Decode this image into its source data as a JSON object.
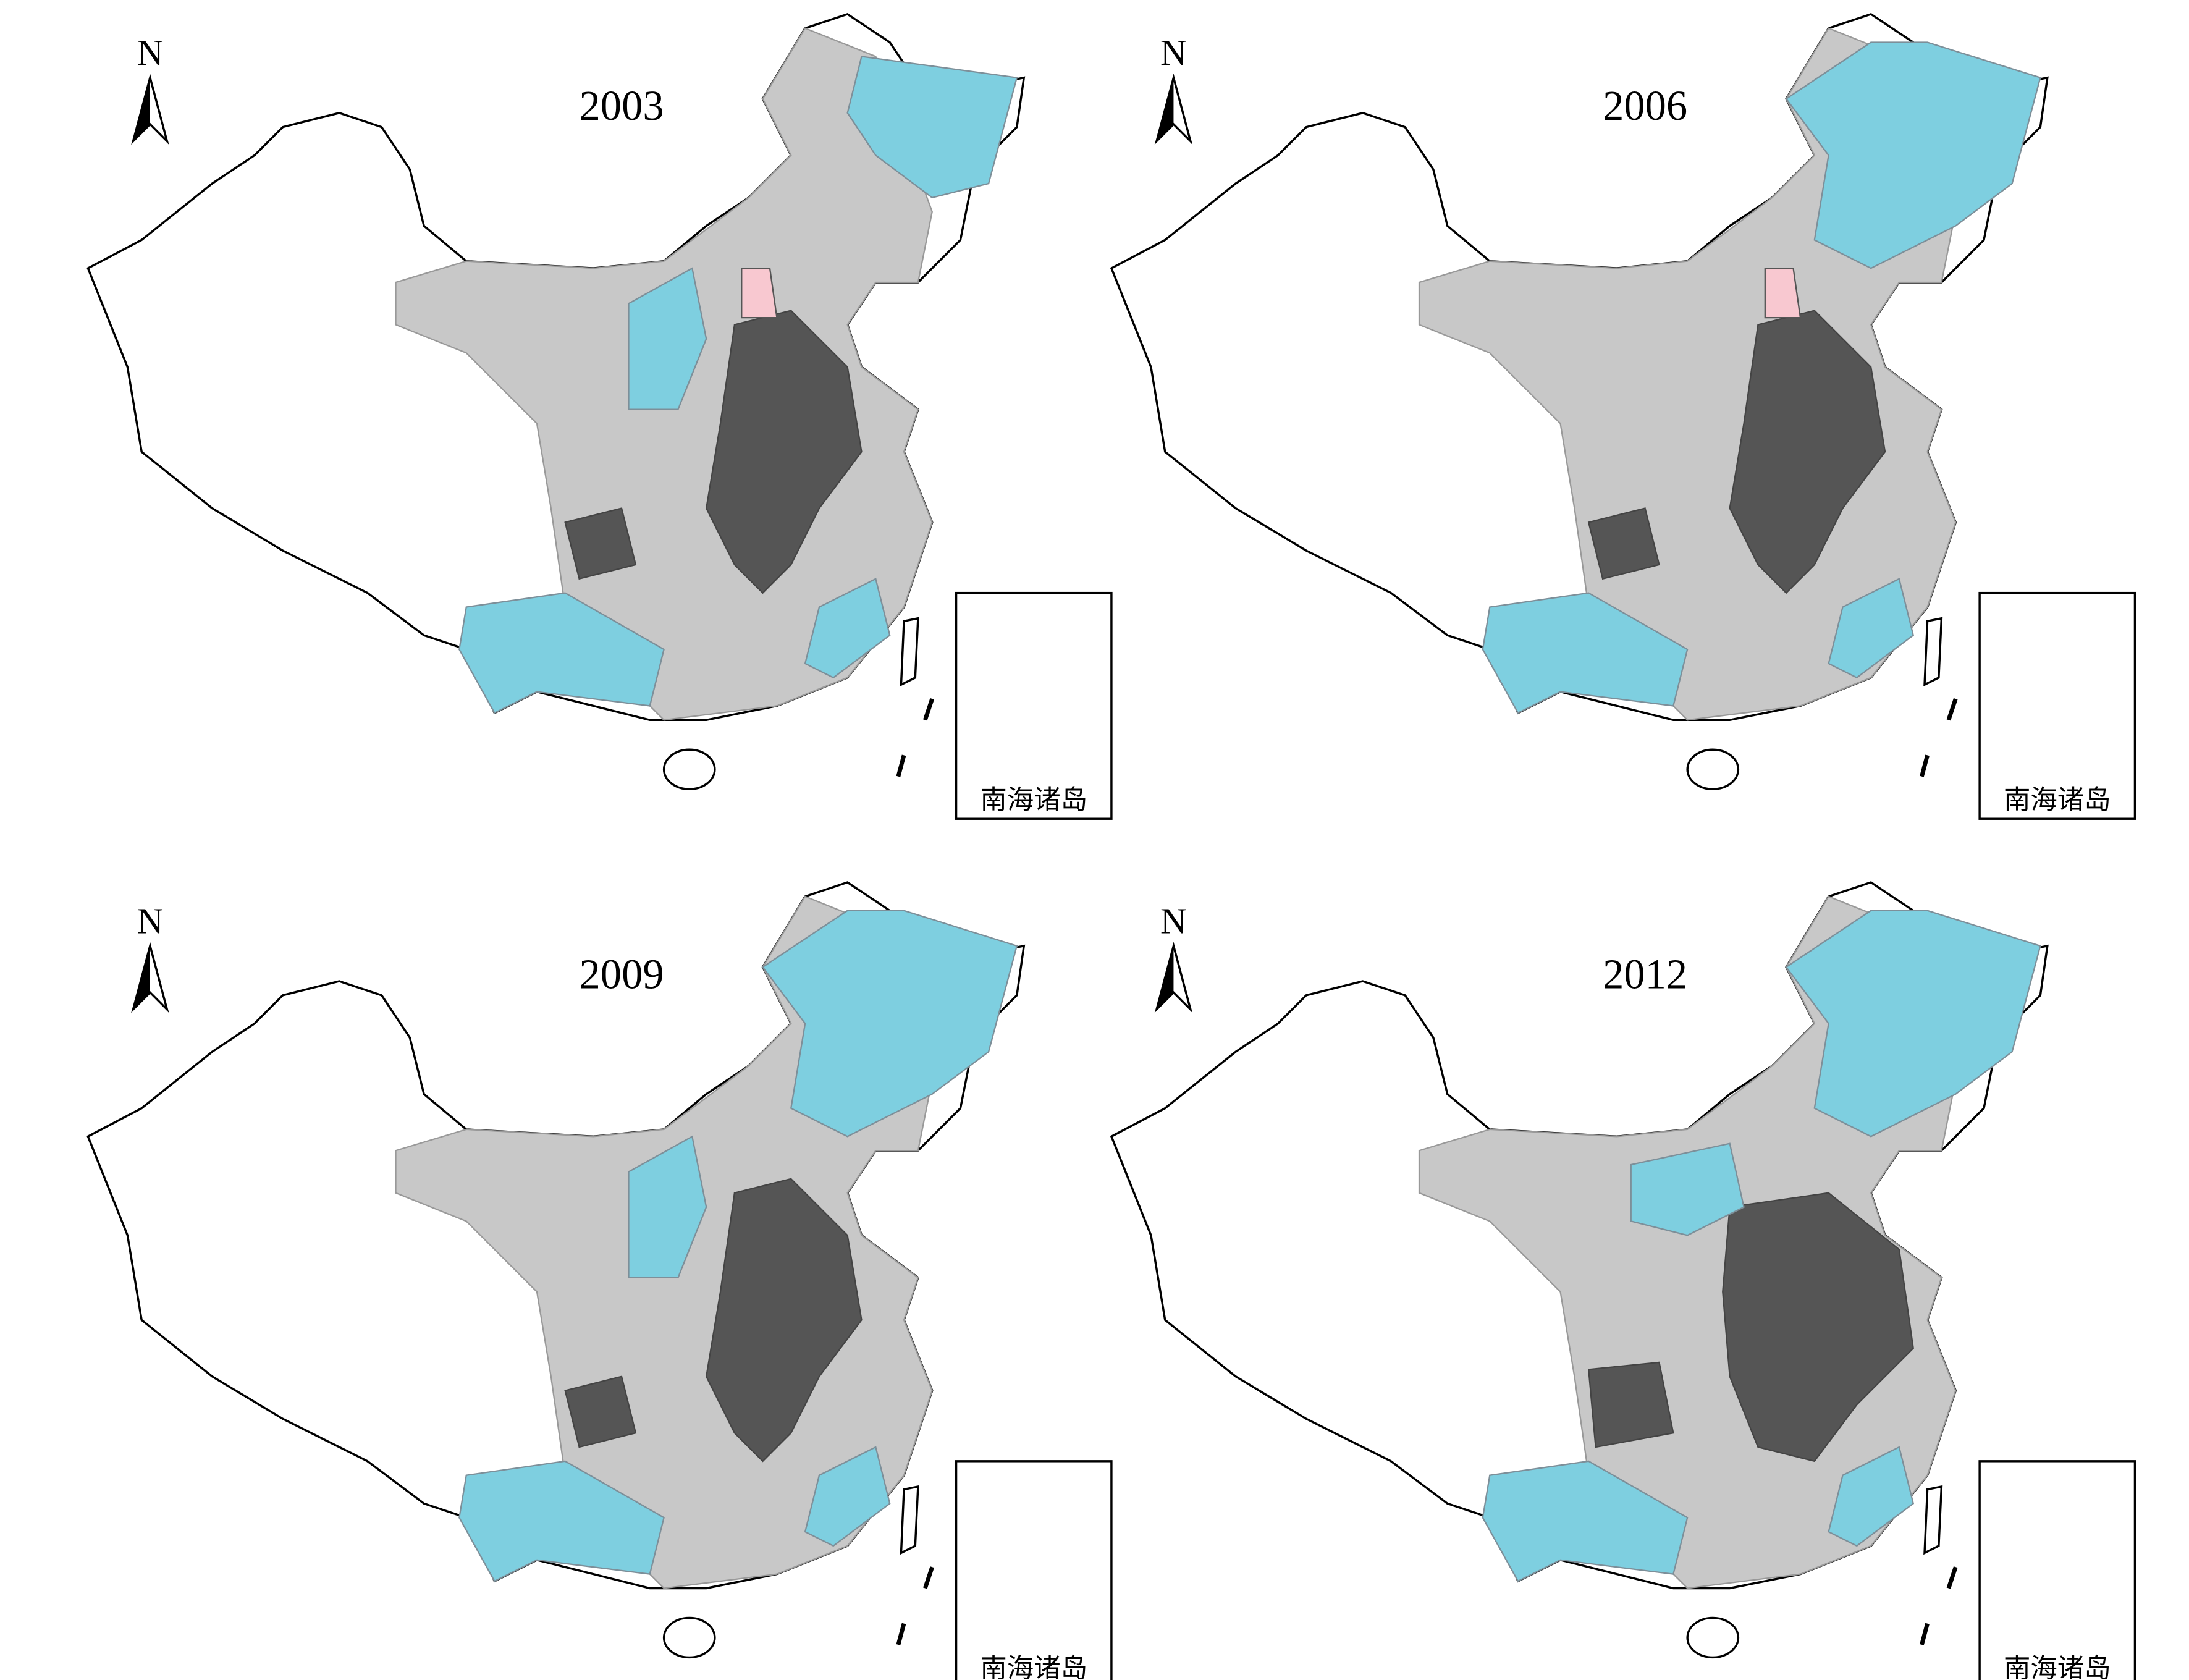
{
  "panels": [
    {
      "year": "2003",
      "north": "N",
      "inset_label": "南海诸岛"
    },
    {
      "year": "2006",
      "north": "N",
      "inset_label": "南海诸岛"
    },
    {
      "year": "2009",
      "north": "N",
      "inset_label": "南海诸岛"
    },
    {
      "year": "2012",
      "north": "N",
      "inset_label": "南海诸岛"
    }
  ]
}
